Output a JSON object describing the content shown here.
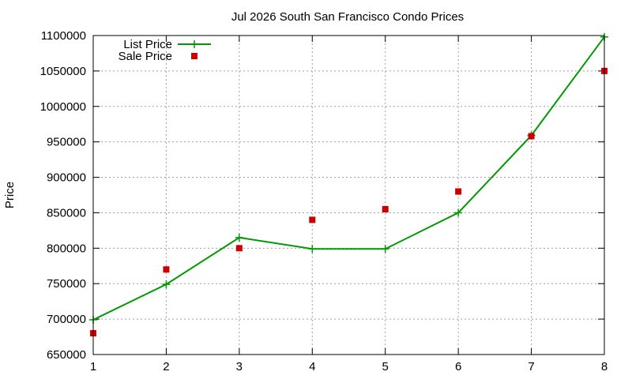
{
  "chart_data": {
    "type": "line",
    "title": "Jul 2026 South San Francisco Condo Prices",
    "xlabel": "",
    "ylabel": "Price",
    "x": [
      1,
      2,
      3,
      4,
      5,
      6,
      7,
      8
    ],
    "xlim": [
      1,
      8
    ],
    "ylim": [
      650000,
      1100000
    ],
    "yticks": [
      650000,
      700000,
      750000,
      800000,
      850000,
      900000,
      950000,
      1000000,
      1050000,
      1100000
    ],
    "grid": true,
    "legend_position": "top-left",
    "series": [
      {
        "name": "List Price",
        "style": "line-with-plus-markers",
        "color": "#009900",
        "values": [
          699000,
          749000,
          815000,
          799000,
          799000,
          850000,
          959000,
          1098000
        ]
      },
      {
        "name": "Sale Price",
        "style": "square-markers",
        "color": "#cc0000",
        "values": [
          680000,
          770000,
          800000,
          840000,
          855000,
          880000,
          958000,
          1050000
        ]
      }
    ]
  }
}
